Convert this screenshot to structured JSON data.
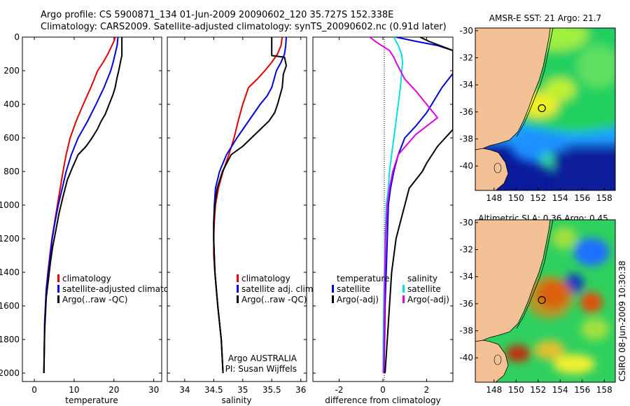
{
  "header": {
    "line1": "Argo profile: CS 5900871_134 01-Jun-2009 20090602_120 35.727S 152.338E",
    "line2": "Climatology: CARS2009. Satellite-adjusted climatology: synTS_20090602.nc (0.91d later)"
  },
  "side_text": "CSIRO 08-Jun-2009 10:30:38",
  "chart_data": [
    {
      "id": "temperature",
      "type": "line",
      "xlabel": "temperature",
      "ylabel": "",
      "xlim": [
        -3,
        32
      ],
      "ylim": [
        2050,
        0
      ],
      "xticks": [
        0,
        10,
        20,
        30
      ],
      "yticks": [
        0,
        200,
        400,
        600,
        800,
        1000,
        1200,
        1400,
        1600,
        1800,
        2000
      ],
      "legend": [
        "climatology",
        "satellite-adjusted climatology",
        "Argo(..raw -QC)"
      ],
      "series": [
        {
          "name": "climatology",
          "color": "#e00000",
          "x": [
            20.3,
            20.0,
            19.5,
            18.5,
            17.3,
            15.9,
            14.2,
            12.3,
            10.5,
            9.0,
            8.0,
            7.2,
            6.5,
            5.8,
            5.1,
            4.4,
            3.9,
            3.4,
            3.0,
            2.6,
            2.4
          ],
          "y": [
            0,
            25,
            50,
            100,
            150,
            200,
            300,
            400,
            500,
            600,
            700,
            800,
            900,
            1000,
            1100,
            1200,
            1300,
            1400,
            1500,
            1700,
            2000
          ]
        },
        {
          "name": "satellite-adjusted climatology",
          "color": "#0000e0",
          "x": [
            21.0,
            20.9,
            20.8,
            20.3,
            19.8,
            19.2,
            17.5,
            15.5,
            13.4,
            11.0,
            9.3,
            8.0,
            7.0,
            6.0,
            5.2,
            4.5,
            4.0,
            3.5,
            3.0,
            2.6,
            2.4
          ],
          "y": [
            0,
            25,
            50,
            100,
            150,
            200,
            300,
            400,
            500,
            600,
            700,
            800,
            900,
            1000,
            1100,
            1200,
            1300,
            1400,
            1500,
            1700,
            2000
          ]
        },
        {
          "name": "Argo(..raw -QC)",
          "color": "#000000",
          "x": [
            22.0,
            22.0,
            21.8,
            21.2,
            20.8,
            20.3,
            19.8,
            18.8,
            17.8,
            16.8,
            15.8,
            14.5,
            13.0,
            11.0,
            9.5,
            8.3,
            7.2,
            6.2,
            5.4,
            4.6,
            4.0,
            3.5,
            3.0,
            2.6,
            2.4
          ],
          "y": [
            0,
            110,
            130,
            200,
            240,
            300,
            340,
            400,
            460,
            500,
            550,
            600,
            650,
            700,
            780,
            850,
            950,
            1050,
            1150,
            1250,
            1350,
            1450,
            1550,
            1750,
            2000
          ]
        }
      ]
    },
    {
      "id": "salinity",
      "type": "line",
      "xlabel": "salinity",
      "ylabel": "",
      "xlim": [
        33.7,
        36.1
      ],
      "ylim": [
        2050,
        0
      ],
      "xticks": [
        34,
        34.5,
        35,
        35.5,
        36
      ],
      "yticks": [
        0,
        200,
        400,
        600,
        800,
        1000,
        1200,
        1400,
        1600,
        1800,
        2000
      ],
      "legend": [
        "climatology",
        "satellite adj. clim.",
        "Argo(..raw -QC)"
      ],
      "annotation": [
        "Argo AUSTRALIA",
        "PI: Susan Wijffels"
      ],
      "series": [
        {
          "name": "climatology",
          "color": "#e00000",
          "x": [
            35.68,
            35.66,
            35.6,
            35.5,
            35.38,
            35.25,
            35.1,
            35.0,
            34.92,
            34.85,
            34.76,
            34.66,
            34.58,
            34.53,
            34.51,
            34.5,
            34.5,
            34.52,
            34.57,
            34.63,
            34.66
          ],
          "y": [
            0,
            50,
            100,
            150,
            200,
            250,
            300,
            400,
            500,
            600,
            700,
            800,
            900,
            1000,
            1100,
            1200,
            1300,
            1400,
            1600,
            1800,
            2000
          ]
        },
        {
          "name": "satellite adj. clim.",
          "color": "#0000e0",
          "x": [
            35.75,
            35.74,
            35.72,
            35.66,
            35.58,
            35.5,
            35.42,
            35.3,
            35.1,
            34.9,
            34.72,
            34.6,
            34.53,
            34.51,
            34.5,
            34.5,
            34.52,
            34.57,
            34.63,
            34.66
          ],
          "y": [
            0,
            50,
            100,
            150,
            200,
            300,
            350,
            400,
            500,
            600,
            700,
            800,
            900,
            1000,
            1100,
            1200,
            1400,
            1600,
            1800,
            2000
          ]
        },
        {
          "name": "Argo(..raw -QC)",
          "color": "#000000",
          "x": [
            35.5,
            35.5,
            35.72,
            35.75,
            35.7,
            35.68,
            35.6,
            35.55,
            35.45,
            35.3,
            35.15,
            35.0,
            34.8,
            34.65,
            34.56,
            34.52,
            34.5,
            34.5,
            34.52,
            34.57,
            34.63,
            34.66
          ],
          "y": [
            0,
            110,
            120,
            170,
            220,
            300,
            400,
            450,
            500,
            550,
            600,
            650,
            700,
            800,
            900,
            1000,
            1100,
            1200,
            1400,
            1600,
            1800,
            2000
          ]
        }
      ]
    },
    {
      "id": "difference",
      "type": "line",
      "xlabel": "difference from climatology",
      "ylabel": "",
      "xlim": [
        -3.2,
        3.2
      ],
      "ylim": [
        2050,
        0
      ],
      "xticks": [
        -2,
        0,
        2
      ],
      "yticks": [
        0,
        200,
        400,
        600,
        800,
        1000,
        1200,
        1400,
        1600,
        1800,
        2000
      ],
      "legend_temperature": {
        "title": "temperature",
        "items": [
          "satellite",
          "Argo(-adj)"
        ]
      },
      "legend_salinity": {
        "title": "salinity",
        "items": [
          "satellite",
          "Argo(-adj)"
        ]
      },
      "series": [
        {
          "name": "temperature satellite",
          "color": "#0000e0",
          "x": [
            0.6,
            1.5,
            2.5,
            3.2,
            3.3,
            2.7,
            2.0,
            1.5,
            1.0,
            0.7,
            0.5,
            0.35,
            0.25,
            0.2,
            0.15,
            0.1,
            0.08,
            0.06,
            0.05
          ],
          "y": [
            0,
            25,
            50,
            80,
            200,
            300,
            450,
            530,
            600,
            700,
            800,
            900,
            1000,
            1200,
            1400,
            1600,
            1800,
            1900,
            2000
          ]
        },
        {
          "name": "temperature Argo(-adj)",
          "color": "#000000",
          "x": [
            1.7,
            2.1,
            2.6,
            3.2,
            3.2,
            2.5,
            2.0,
            1.8,
            1.2,
            1.0,
            0.8,
            0.6,
            0.4,
            0.3,
            0.2,
            0.15,
            0.1
          ],
          "y": [
            0,
            25,
            50,
            80,
            550,
            650,
            750,
            800,
            900,
            1000,
            1100,
            1200,
            1400,
            1600,
            1800,
            1900,
            2000
          ]
        },
        {
          "name": "salinity satellite",
          "color": "#00e0e0",
          "x": [
            0.5,
            0.7,
            0.85,
            0.9,
            0.8,
            0.7,
            0.6,
            0.5,
            0.4,
            0.3,
            0.25,
            0.15,
            0.1,
            0.05,
            0.02,
            0.01
          ],
          "y": [
            0,
            50,
            100,
            150,
            300,
            400,
            500,
            600,
            700,
            800,
            900,
            1000,
            1200,
            1500,
            1800,
            2000
          ]
        },
        {
          "name": "salinity Argo(-adj)",
          "color": "#e000e0",
          "x": [
            -0.6,
            -0.3,
            0.3,
            0.5,
            0.6,
            0.8,
            1.0,
            1.5,
            2.0,
            2.5,
            1.5,
            0.7,
            0.45,
            0.3,
            0.2,
            0.12,
            0.08,
            0.05,
            0.03
          ],
          "y": [
            0,
            30,
            80,
            120,
            150,
            200,
            250,
            320,
            400,
            480,
            580,
            700,
            800,
            900,
            1000,
            1200,
            1500,
            1800,
            2000
          ]
        }
      ]
    },
    {
      "id": "sst-map",
      "type": "heatmap",
      "title": "AMSR-E SST: 21 Argo: 21.7",
      "xlim": [
        146.3,
        159
      ],
      "ylim": [
        -41.8,
        -29.8
      ],
      "xticks": [
        148,
        150,
        152,
        154,
        156,
        158
      ],
      "yticks": [
        -30,
        -32,
        -34,
        -36,
        -38,
        -40
      ],
      "marker": {
        "lon": 152.338,
        "lat": -35.727
      }
    },
    {
      "id": "sla-map",
      "type": "heatmap",
      "title": "Altimetric SLA: 0.36 Argo: 0.45",
      "xlim": [
        146.3,
        159
      ],
      "ylim": [
        -41.8,
        -29.8
      ],
      "xticks": [
        148,
        150,
        152,
        154,
        156,
        158
      ],
      "yticks": [
        -30,
        -32,
        -34,
        -36,
        -38,
        -40
      ],
      "marker": {
        "lon": 152.338,
        "lat": -35.727
      }
    }
  ]
}
